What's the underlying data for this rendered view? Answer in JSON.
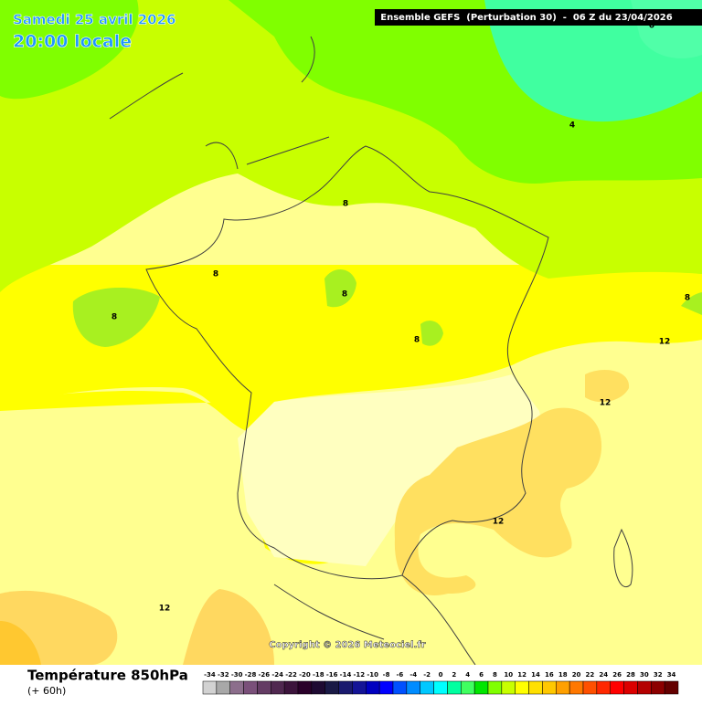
{
  "header": {
    "date": "Samedi 25 avril 2026",
    "time": "20:00 locale",
    "model": "Ensemble GEFS  (Perturbation 30)  -  06 Z du 23/04/2026"
  },
  "map": {
    "copyright": "Copyright © 2026 Meteociel.fr",
    "contour_labels": [
      "0",
      "4",
      "8",
      "8",
      "8",
      "8",
      "8",
      "8",
      "12",
      "12",
      "12",
      "12"
    ]
  },
  "footer": {
    "title": "Température 850hPa",
    "subtitle": "(+ 60h)"
  },
  "scale": {
    "ticks": [
      -34,
      -32,
      -30,
      -28,
      -26,
      -24,
      -22,
      -20,
      -18,
      -16,
      -14,
      -12,
      -10,
      -8,
      -6,
      -4,
      -2,
      0,
      2,
      4,
      6,
      8,
      10,
      12,
      14,
      16,
      18,
      20,
      22,
      24,
      26,
      28,
      30,
      32,
      34
    ],
    "colors": [
      "#d2d2d2",
      "#a8a8a8",
      "#8c6e8c",
      "#7a507a",
      "#643c64",
      "#502850",
      "#3c143c",
      "#2a002a",
      "#1e0a32",
      "#1a1a46",
      "#1a1a6e",
      "#141496",
      "#0000c0",
      "#0000ff",
      "#0050ff",
      "#008cff",
      "#00c8ff",
      "#00ffff",
      "#00ffa0",
      "#40ff60",
      "#00e600",
      "#80ff00",
      "#c8ff00",
      "#ffff00",
      "#ffe000",
      "#ffc800",
      "#ffa000",
      "#ff7800",
      "#ff5000",
      "#ff2800",
      "#ff0000",
      "#dc0000",
      "#b40000",
      "#8c0000",
      "#640000"
    ]
  }
}
